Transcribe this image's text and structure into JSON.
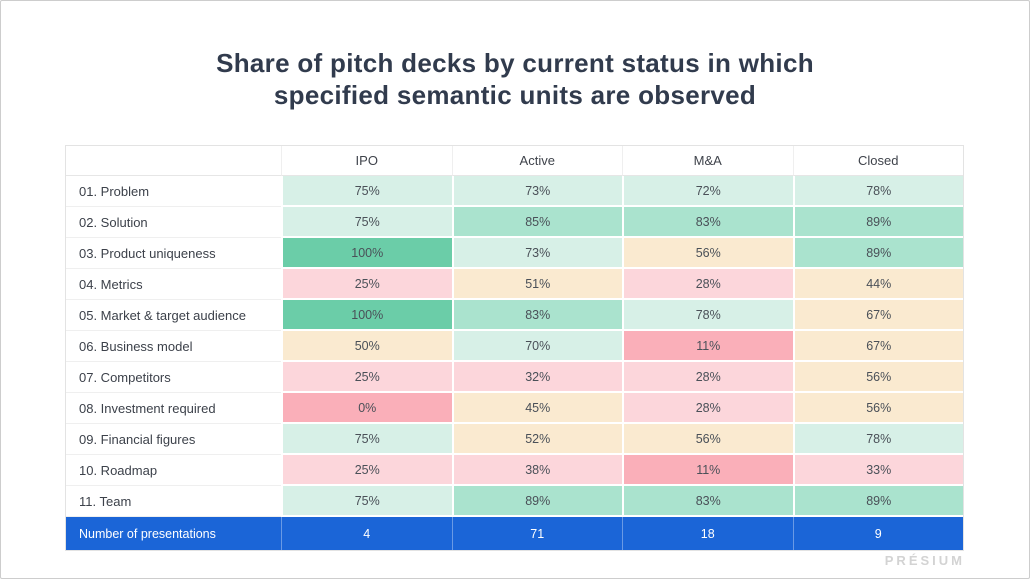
{
  "title": {
    "line1": "Share of pitch decks by current status in which",
    "line2": "specified semantic units are observed"
  },
  "logo": "PRÉSIUM",
  "colors": {
    "footer_bg": "#1b65d7",
    "title_text": "#313b4d",
    "tiers": [
      {
        "min": 100,
        "color": "#6bcda8"
      },
      {
        "min": 80,
        "color": "#aae3ce"
      },
      {
        "min": 69,
        "color": "#d7f0e7"
      },
      {
        "min": 40,
        "color": "#faead0"
      },
      {
        "min": 15,
        "color": "#fcd6db"
      },
      {
        "min": 0,
        "color": "#faafb9"
      }
    ]
  },
  "chart_data": {
    "type": "heatmap",
    "title": "Share of pitch decks by current status in which specified semantic units are observed",
    "columns": [
      "IPO",
      "Active",
      "M&A",
      "Closed"
    ],
    "rows": [
      {
        "label": "01. Problem",
        "values": [
          75,
          73,
          72,
          78
        ]
      },
      {
        "label": "02. Solution",
        "values": [
          75,
          85,
          83,
          89
        ]
      },
      {
        "label": "03. Product uniqueness",
        "values": [
          100,
          73,
          56,
          89
        ]
      },
      {
        "label": "04. Metrics",
        "values": [
          25,
          51,
          28,
          44
        ]
      },
      {
        "label": "05. Market & target audience",
        "values": [
          100,
          83,
          78,
          67
        ]
      },
      {
        "label": "06. Business model",
        "values": [
          50,
          70,
          11,
          67
        ]
      },
      {
        "label": "07. Competitors",
        "values": [
          25,
          32,
          28,
          56
        ]
      },
      {
        "label": "08. Investment required",
        "values": [
          0,
          45,
          28,
          56
        ]
      },
      {
        "label": "09. Financial figures",
        "values": [
          75,
          52,
          56,
          78
        ]
      },
      {
        "label": "10. Roadmap",
        "values": [
          25,
          38,
          11,
          33
        ]
      },
      {
        "label": "11. Team",
        "values": [
          75,
          89,
          83,
          89
        ]
      }
    ],
    "value_unit": "%",
    "footer": {
      "label": "Number of presentations",
      "values": [
        4,
        71,
        18,
        9
      ]
    }
  }
}
